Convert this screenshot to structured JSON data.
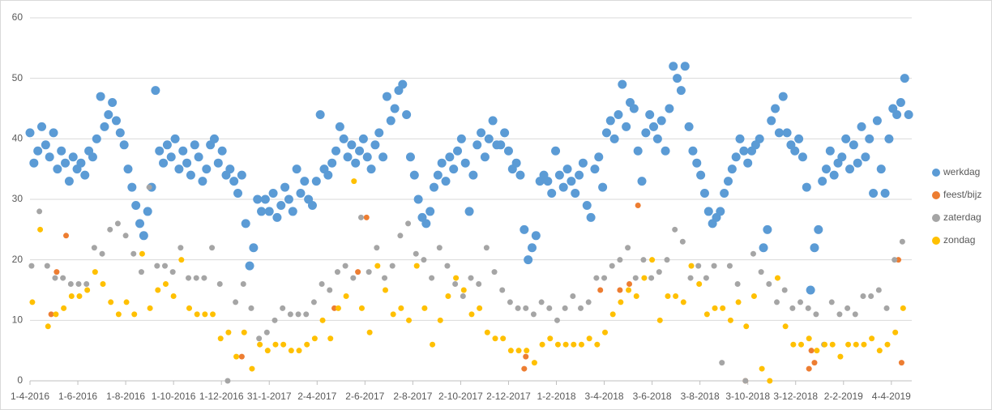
{
  "chart_data": {
    "type": "scatter",
    "xlim": [
      42461,
      43585
    ],
    "ylim": [
      0,
      60
    ],
    "yticks": [
      0,
      10,
      20,
      30,
      40,
      50,
      60
    ],
    "xticks": [
      {
        "value": 42461,
        "label": "1-4-2016"
      },
      {
        "value": 42522,
        "label": "1-6-2016"
      },
      {
        "value": 42583,
        "label": "1-8-2016"
      },
      {
        "value": 42644,
        "label": "1-10-2016"
      },
      {
        "value": 42705,
        "label": "1-12-2016"
      },
      {
        "value": 42766,
        "label": "31-1-2017"
      },
      {
        "value": 42827,
        "label": "2-4-2017"
      },
      {
        "value": 42888,
        "label": "2-6-2017"
      },
      {
        "value": 42949,
        "label": "2-8-2017"
      },
      {
        "value": 43010,
        "label": "2-10-2017"
      },
      {
        "value": 43071,
        "label": "2-12-2017"
      },
      {
        "value": 43132,
        "label": "1-2-2018"
      },
      {
        "value": 43193,
        "label": "3-4-2018"
      },
      {
        "value": 43254,
        "label": "3-6-2018"
      },
      {
        "value": 43315,
        "label": "3-8-2018"
      },
      {
        "value": 43376,
        "label": "3-10-2018"
      },
      {
        "value": 43437,
        "label": "3-12-2018"
      },
      {
        "value": 43498,
        "label": "2-2-2019"
      },
      {
        "value": 43559,
        "label": "4-4-2019"
      }
    ],
    "grid": true,
    "legend": "right",
    "series": [
      {
        "name": "werkdag",
        "color": "#5b9bd5",
        "x": [
          42461,
          42466,
          42471,
          42476,
          42481,
          42486,
          42491,
          42496,
          42501,
          42506,
          42511,
          42516,
          42521,
          42526,
          42531,
          42536,
          42541,
          42546,
          42551,
          42556,
          42561,
          42566,
          42571,
          42576,
          42581,
          42586,
          42591,
          42596,
          42601,
          42606,
          42611,
          42616,
          42621,
          42626,
          42631,
          42636,
          42641,
          42646,
          42651,
          42656,
          42661,
          42666,
          42671,
          42676,
          42681,
          42686,
          42691,
          42696,
          42701,
          42706,
          42711,
          42716,
          42721,
          42726,
          42731,
          42736,
          42741,
          42746,
          42751,
          42756,
          42761,
          42766,
          42771,
          42776,
          42781,
          42786,
          42791,
          42796,
          42801,
          42806,
          42811,
          42816,
          42821,
          42826,
          42831,
          42836,
          42841,
          42846,
          42851,
          42856,
          42861,
          42866,
          42871,
          42876,
          42881,
          42886,
          42891,
          42896,
          42901,
          42906,
          42911,
          42916,
          42921,
          42926,
          42931,
          42936,
          42941,
          42946,
          42951,
          42956,
          42961,
          42966,
          42971,
          42976,
          42981,
          42986,
          42991,
          42996,
          43001,
          43006,
          43011,
          43016,
          43021,
          43026,
          43031,
          43036,
          43041,
          43046,
          43051,
          43056,
          43061,
          43066,
          43071,
          43076,
          43081,
          43086,
          43091,
          43096,
          43101,
          43106,
          43111,
          43116,
          43121,
          43126,
          43131,
          43136,
          43141,
          43146,
          43151,
          43156,
          43161,
          43166,
          43171,
          43176,
          43181,
          43186,
          43191,
          43196,
          43201,
          43206,
          43211,
          43216,
          43221,
          43226,
          43231,
          43236,
          43241,
          43246,
          43251,
          43256,
          43261,
          43266,
          43271,
          43276,
          43281,
          43286,
          43291,
          43296,
          43301,
          43306,
          43311,
          43316,
          43321,
          43326,
          43331,
          43336,
          43341,
          43346,
          43351,
          43356,
          43361,
          43366,
          43371,
          43376,
          43381,
          43386,
          43391,
          43396,
          43401,
          43406,
          43411,
          43416,
          43421,
          43426,
          43431,
          43436,
          43441,
          43446,
          43451,
          43456,
          43461,
          43466,
          43471,
          43476,
          43481,
          43486,
          43491,
          43496,
          43501,
          43506,
          43511,
          43516,
          43521,
          43526,
          43531,
          43536,
          43541,
          43546,
          43551,
          43556,
          43561,
          43566,
          43571,
          43576,
          43581
        ],
        "values": [
          41,
          36,
          38,
          42,
          39,
          37,
          41,
          35,
          38,
          36,
          33,
          37,
          35,
          36,
          34,
          38,
          37,
          40,
          47,
          42,
          44,
          46,
          43,
          41,
          39,
          35,
          32,
          29,
          26,
          24,
          28,
          32,
          48,
          38,
          36,
          39,
          37,
          40,
          35,
          38,
          36,
          34,
          39,
          37,
          33,
          35,
          39,
          40,
          36,
          38,
          34,
          35,
          33,
          31,
          34,
          26,
          19,
          22,
          30,
          28,
          30,
          28,
          31,
          27,
          29,
          32,
          30,
          28,
          35,
          31,
          33,
          30,
          29,
          33,
          44,
          35,
          34,
          36,
          38,
          42,
          40,
          37,
          39,
          36,
          38,
          40,
          37,
          35,
          39,
          41,
          37,
          47,
          43,
          45,
          48,
          49,
          44,
          37,
          34,
          30,
          27,
          26,
          28,
          32,
          34,
          36,
          33,
          37,
          35,
          38,
          40,
          36,
          28,
          34,
          39,
          41,
          37,
          40,
          43,
          39,
          39,
          41,
          38,
          35,
          36,
          34,
          25,
          20,
          22,
          24,
          33,
          34,
          33,
          31,
          38,
          34,
          32,
          35,
          33,
          31,
          34,
          36,
          29,
          27,
          35,
          37,
          32,
          41,
          43,
          40,
          44,
          49,
          42,
          46,
          45,
          38,
          33,
          41,
          44,
          42,
          40,
          43,
          38,
          45,
          52,
          50,
          48,
          52,
          42,
          38,
          36,
          34,
          31,
          28,
          26,
          27,
          28,
          31,
          33,
          35,
          37,
          40,
          38,
          36,
          38,
          39,
          40,
          22,
          25,
          43,
          45,
          41,
          47,
          41,
          39,
          38,
          40,
          37,
          32,
          15,
          22,
          25,
          33,
          35,
          38,
          34,
          36,
          37,
          40,
          35,
          39,
          36,
          42,
          37,
          40,
          31,
          43,
          35,
          31,
          40,
          45,
          44,
          46,
          50,
          44
        ]
      },
      {
        "name": "feest/bijz",
        "color": "#ed7d31",
        "x": [
          42488,
          42495,
          42507,
          42731,
          42849,
          42879,
          42890,
          43091,
          43093,
          43188,
          43213,
          43225,
          43236,
          43373,
          43454,
          43457,
          43461,
          43568,
          43572
        ],
        "values": [
          11,
          18,
          24,
          4,
          12,
          18,
          27,
          2,
          4,
          15,
          15,
          16,
          29,
          0,
          2,
          5,
          3,
          20,
          3
        ]
      },
      {
        "name": "zaterdag",
        "color": "#a5a5a5",
        "x": [
          42463,
          42473,
          42483,
          42493,
          42503,
          42513,
          42523,
          42533,
          42543,
          42553,
          42563,
          42573,
          42583,
          42593,
          42603,
          42613,
          42623,
          42633,
          42643,
          42653,
          42663,
          42673,
          42683,
          42693,
          42703,
          42713,
          42723,
          42733,
          42743,
          42753,
          42763,
          42773,
          42783,
          42793,
          42803,
          42813,
          42823,
          42833,
          42843,
          42853,
          42863,
          42873,
          42883,
          42893,
          42903,
          42913,
          42923,
          42933,
          42943,
          42953,
          42963,
          42973,
          42983,
          42993,
          43003,
          43013,
          43023,
          43033,
          43043,
          43053,
          43063,
          43073,
          43083,
          43093,
          43103,
          43113,
          43123,
          43133,
          43143,
          43153,
          43163,
          43173,
          43183,
          43193,
          43203,
          43213,
          43223,
          43233,
          43243,
          43253,
          43263,
          43273,
          43283,
          43293,
          43303,
          43313,
          43323,
          43333,
          43343,
          43353,
          43363,
          43373,
          43383,
          43393,
          43403,
          43413,
          43423,
          43433,
          43443,
          43453,
          43463,
          43473,
          43483,
          43493,
          43503,
          43513,
          43523,
          43533,
          43543,
          43553,
          43563,
          43573
        ],
        "values": [
          19,
          28,
          19,
          17,
          17,
          16,
          16,
          16,
          22,
          21,
          25,
          26,
          24,
          21,
          18,
          32,
          19,
          19,
          18,
          22,
          17,
          17,
          17,
          22,
          16,
          0,
          13,
          16,
          12,
          7,
          8,
          10,
          12,
          11,
          11,
          11,
          13,
          16,
          15,
          18,
          19,
          17,
          27,
          18,
          22,
          17,
          19,
          24,
          26,
          21,
          20,
          17,
          22,
          19,
          16,
          14,
          17,
          16,
          22,
          18,
          15,
          13,
          12,
          12,
          11,
          13,
          12,
          10,
          12,
          14,
          12,
          13,
          17,
          17,
          19,
          20,
          22,
          17,
          20,
          17,
          18,
          20,
          25,
          23,
          17,
          19,
          17,
          19,
          3,
          19,
          16,
          0,
          21,
          18,
          16,
          13,
          15,
          12,
          13,
          12,
          11,
          6,
          13,
          11,
          12,
          11,
          14,
          14,
          15,
          12,
          20,
          23
        ]
      },
      {
        "name": "zondag",
        "color": "#ffc000",
        "x": [
          42464,
          42474,
          42484,
          42494,
          42504,
          42514,
          42524,
          42534,
          42544,
          42554,
          42564,
          42574,
          42584,
          42594,
          42604,
          42614,
          42624,
          42634,
          42644,
          42654,
          42664,
          42674,
          42684,
          42694,
          42704,
          42714,
          42724,
          42734,
          42744,
          42754,
          42764,
          42774,
          42784,
          42794,
          42804,
          42814,
          42824,
          42834,
          42844,
          42854,
          42864,
          42874,
          42884,
          42894,
          42904,
          42914,
          42924,
          42934,
          42944,
          42954,
          42964,
          42974,
          42984,
          42994,
          43004,
          43014,
          43024,
          43034,
          43044,
          43054,
          43064,
          43074,
          43084,
          43094,
          43104,
          43114,
          43124,
          43134,
          43144,
          43154,
          43164,
          43174,
          43184,
          43194,
          43204,
          43214,
          43224,
          43234,
          43244,
          43254,
          43264,
          43274,
          43284,
          43294,
          43304,
          43314,
          43324,
          43334,
          43344,
          43354,
          43364,
          43374,
          43384,
          43394,
          43404,
          43414,
          43424,
          43434,
          43444,
          43454,
          43464,
          43474,
          43484,
          43494,
          43504,
          43514,
          43524,
          43534,
          43544,
          43554,
          43564,
          43574
        ],
        "values": [
          13,
          25,
          9,
          11,
          12,
          14,
          14,
          15,
          18,
          16,
          13,
          11,
          13,
          11,
          21,
          12,
          15,
          16,
          14,
          20,
          12,
          11,
          11,
          11,
          7,
          8,
          4,
          8,
          2,
          6,
          5,
          6,
          6,
          5,
          5,
          6,
          7,
          10,
          7,
          12,
          14,
          33,
          12,
          8,
          19,
          15,
          11,
          12,
          10,
          19,
          12,
          6,
          10,
          14,
          17,
          15,
          11,
          12,
          8,
          7,
          7,
          5,
          5,
          5,
          3,
          6,
          7,
          6,
          6,
          6,
          6,
          7,
          6,
          8,
          11,
          13,
          15,
          14,
          17,
          20,
          10,
          14,
          14,
          13,
          19,
          16,
          11,
          12,
          12,
          10,
          13,
          9,
          14,
          2,
          0,
          17,
          9,
          6,
          6,
          7,
          5,
          6,
          6,
          4,
          6,
          6,
          6,
          7,
          5,
          6,
          8,
          12
        ]
      }
    ]
  }
}
